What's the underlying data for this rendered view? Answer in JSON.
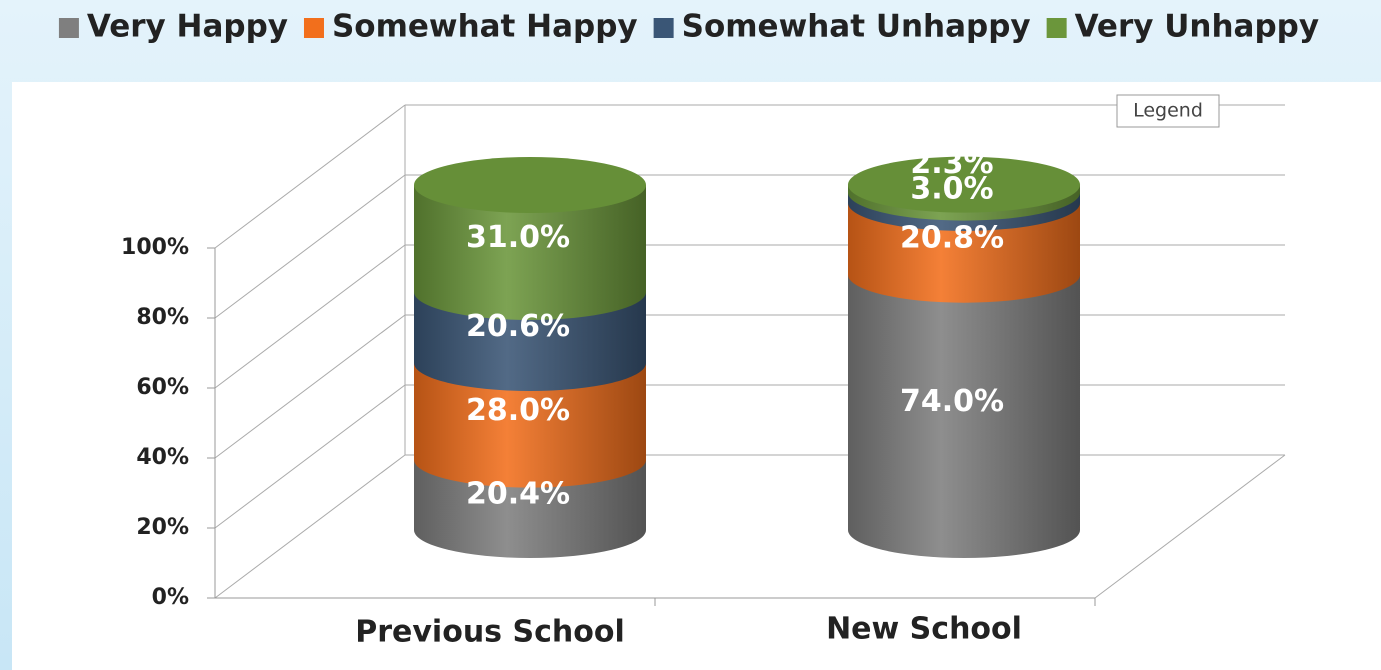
{
  "chart_data": {
    "type": "bar3d_cylinder_stacked",
    "categories": [
      "Previous School",
      "New School"
    ],
    "series": [
      {
        "name": "Very Happy",
        "color": "#7f7f7f",
        "values": [
          20.4,
          74.0
        ],
        "value_labels": [
          "20.4%",
          "74.0%"
        ]
      },
      {
        "name": "Somewhat Happy",
        "color": "#f26f1c",
        "values": [
          28.0,
          20.8
        ],
        "value_labels": [
          "28.0%",
          "20.8%"
        ]
      },
      {
        "name": "Somewhat Unhappy",
        "color": "#3a5676",
        "values": [
          20.6,
          3.0
        ],
        "value_labels": [
          "20.6%",
          "3.0%"
        ]
      },
      {
        "name": "Very Unhappy",
        "color": "#6b963b",
        "values": [
          31.0,
          2.3
        ],
        "value_labels": [
          "31.0%",
          "2.3%"
        ]
      }
    ],
    "ylim": [
      0,
      100
    ],
    "yticks": [
      {
        "value": 0,
        "label": "0%"
      },
      {
        "value": 20,
        "label": "20%"
      },
      {
        "value": 40,
        "label": "40%"
      },
      {
        "value": 60,
        "label": "60%"
      },
      {
        "value": 80,
        "label": "80%"
      },
      {
        "value": 100,
        "label": "100%"
      }
    ],
    "grid": true,
    "legend": "top",
    "tooltip": "Legend"
  }
}
